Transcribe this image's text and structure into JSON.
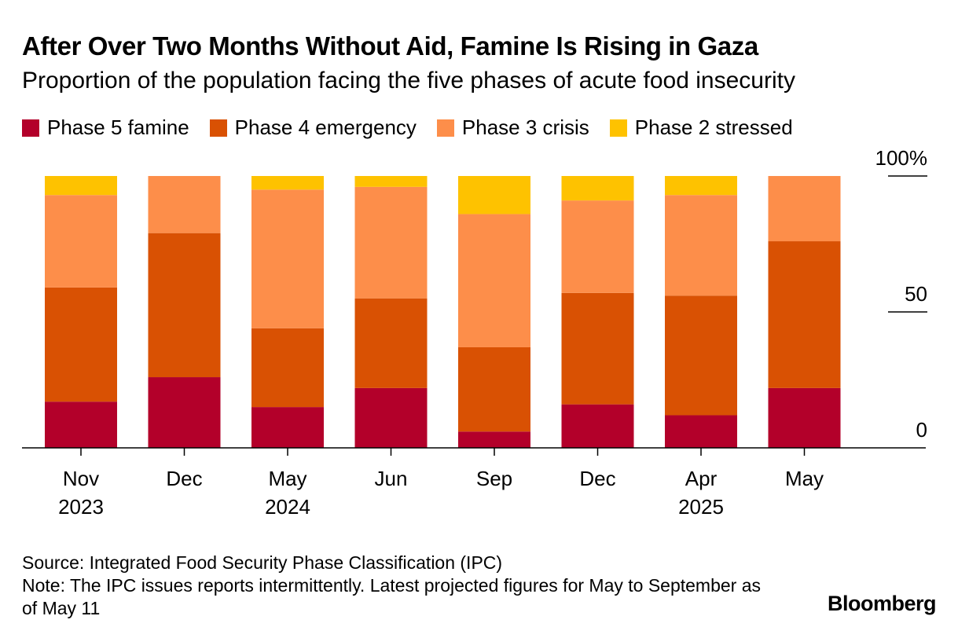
{
  "header": {
    "title": "After Over Two Months Without Aid, Famine Is Rising in Gaza",
    "subtitle": "Proportion of the population facing the five phases of acute food insecurity"
  },
  "footer": {
    "source": "Source: Integrated Food Security Phase Classification (IPC)",
    "note": "Note: The IPC issues reports intermittently. Latest projected figures for May to September as of May 11",
    "brand": "Bloomberg"
  },
  "chart_data": {
    "type": "bar",
    "stacked": true,
    "title": "After Over Two Months Without Aid, Famine Is Rising in Gaza",
    "subtitle": "Proportion of the population facing the five phases of acute food insecurity",
    "categories": [
      "Nov",
      "Dec",
      "May",
      "Jun",
      "Sep",
      "Dec",
      "Apr",
      "May"
    ],
    "year_labels": [
      "2023",
      "",
      "2024",
      "",
      "",
      "",
      "2025",
      ""
    ],
    "series": [
      {
        "name": "Phase 5 famine",
        "color": "#b3002a",
        "values": [
          17,
          26,
          15,
          22,
          6,
          16,
          12,
          22
        ]
      },
      {
        "name": "Phase 4 emergency",
        "color": "#d95103",
        "values": [
          42,
          53,
          29,
          33,
          31,
          41,
          44,
          54
        ]
      },
      {
        "name": "Phase 3 crisis",
        "color": "#fd8e4a",
        "values": [
          34,
          21,
          51,
          41,
          49,
          34,
          37,
          24
        ]
      },
      {
        "name": "Phase 2 stressed",
        "color": "#fec200",
        "values": [
          7,
          0,
          5,
          4,
          14,
          9,
          7,
          0
        ]
      }
    ],
    "y_ticks": [
      {
        "value": 100,
        "label": "100%"
      },
      {
        "value": 50,
        "label": "50"
      },
      {
        "value": 0,
        "label": "0"
      }
    ],
    "ylim": [
      0,
      100
    ],
    "legend_position": "top-left",
    "grid": false
  }
}
